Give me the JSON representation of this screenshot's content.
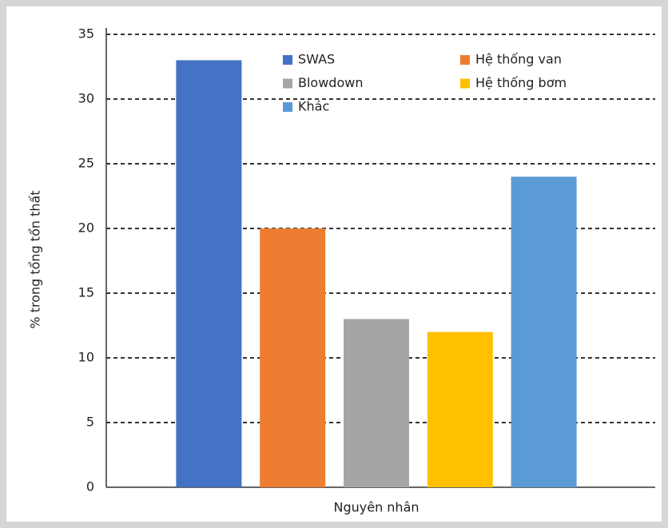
{
  "chart_data": {
    "type": "bar",
    "xlabel": "Nguyên nhân",
    "ylabel": "% trong tổng tổn thất",
    "categories": [
      null
    ],
    "series": [
      {
        "name": "SWAS",
        "color": "#4472c4",
        "values": [
          33
        ]
      },
      {
        "name": "Hệ thống van",
        "color": "#ed7d31",
        "values": [
          20
        ]
      },
      {
        "name": "Blowdown",
        "color": "#a5a5a5",
        "values": [
          13
        ]
      },
      {
        "name": "Hệ thống bơm",
        "color": "#ffc000",
        "values": [
          12
        ]
      },
      {
        "name": "Khác",
        "color": "#5b9bd5",
        "values": [
          24
        ]
      }
    ],
    "ylim": [
      0,
      35
    ],
    "yticks": [
      0,
      5,
      10,
      15,
      20,
      25,
      30,
      35
    ],
    "grid": true
  }
}
